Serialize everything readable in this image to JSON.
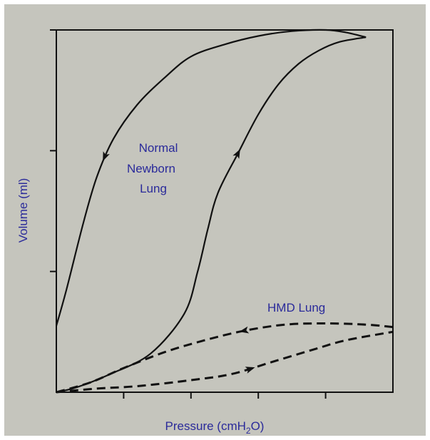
{
  "chart_data": {
    "type": "line",
    "title": "",
    "xlabel": "Pressure (cmH",
    "xlabel_sub": "2",
    "xlabel_end": "O)",
    "ylabel": "Volume (ml)",
    "xlim": [
      0,
      5
    ],
    "ylim": [
      0,
      3
    ],
    "x_ticks": [
      1,
      2,
      3,
      4
    ],
    "y_ticks": [
      1,
      2,
      3
    ],
    "grid": false,
    "series": [
      {
        "name": "Normal Newborn Lung",
        "line_style": "solid",
        "inflation": {
          "x": [
            0,
            0.3,
            0.8,
            1.4,
            1.9,
            2.1,
            2.25,
            2.4,
            2.7,
            3.0,
            3.3,
            3.6,
            3.9,
            4.2,
            4.6
          ],
          "y": [
            0,
            0.04,
            0.15,
            0.32,
            0.65,
            1.0,
            1.35,
            1.65,
            1.98,
            2.3,
            2.55,
            2.72,
            2.83,
            2.9,
            2.94
          ]
        },
        "deflation": {
          "x": [
            4.6,
            4.3,
            4.0,
            3.5,
            3.0,
            2.5,
            2.0,
            1.6,
            1.2,
            0.85,
            0.6,
            0.4,
            0.15,
            0
          ],
          "y": [
            2.94,
            2.98,
            3.0,
            2.99,
            2.95,
            2.88,
            2.78,
            2.6,
            2.38,
            2.1,
            1.78,
            1.4,
            0.85,
            0.55
          ]
        },
        "label_lines": [
          "Normal",
          "Newborn",
          "Lung"
        ]
      },
      {
        "name": "HMD Lung",
        "line_style": "dashed",
        "inflation": {
          "x": [
            0,
            0.6,
            1.2,
            2.0,
            2.6,
            3.2,
            3.8,
            4.3,
            5.0
          ],
          "y": [
            0,
            0.03,
            0.05,
            0.1,
            0.15,
            0.25,
            0.35,
            0.43,
            0.5
          ]
        },
        "deflation": {
          "x": [
            5.0,
            4.6,
            4.0,
            3.4,
            2.8,
            2.2,
            1.6,
            1.0,
            0.5,
            0
          ],
          "y": [
            0.54,
            0.56,
            0.57,
            0.56,
            0.51,
            0.43,
            0.33,
            0.2,
            0.08,
            0
          ]
        },
        "label_lines": [
          "HMD Lung"
        ]
      }
    ]
  },
  "colors": {
    "background": "#c5c5bd",
    "plot_area": "#c5c5bd",
    "curve": "#111111",
    "label_text": "#2a2a9a",
    "axis": "#111111"
  }
}
